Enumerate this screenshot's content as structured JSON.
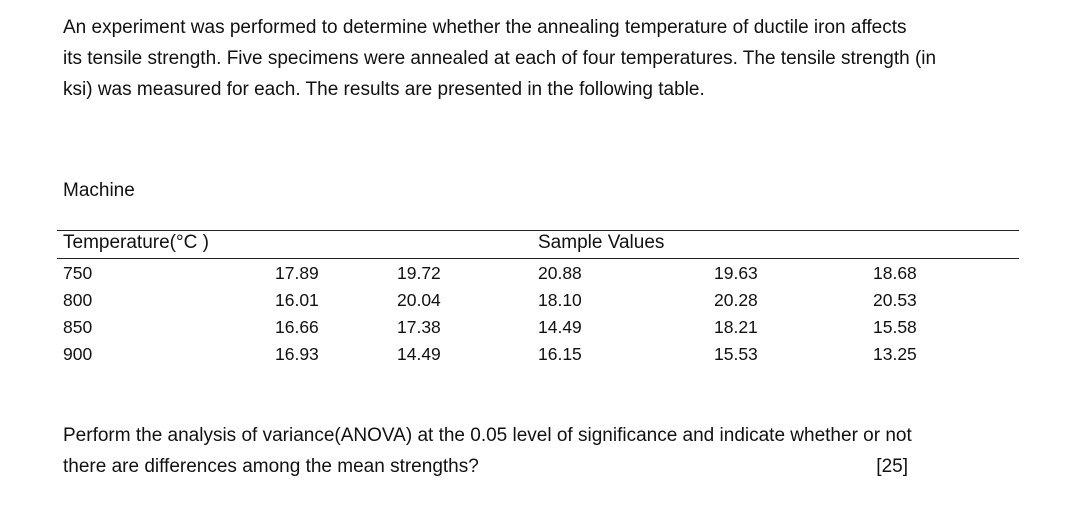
{
  "intro": {
    "line1": "An experiment was performed to determine whether the annealing temperature of ductile iron affects",
    "line2": "its tensile strength. Five specimens were annealed at each of four temperatures. The tensile strength (in",
    "line3": "ksi) was measured for each. The results are presented in the following table."
  },
  "machine_label": "Machine",
  "table": {
    "col_header_temperature": "Temperature(°C )",
    "col_header_samples": "Sample Values",
    "rows": [
      {
        "temp": "750",
        "v1": "17.89",
        "v2": "19.72",
        "v3": "20.88",
        "v4": "19.63",
        "v5": "18.68"
      },
      {
        "temp": "800",
        "v1": "16.01",
        "v2": "20.04",
        "v3": "18.10",
        "v4": "20.28",
        "v5": "20.53"
      },
      {
        "temp": "850",
        "v1": "16.66",
        "v2": "17.38",
        "v3": "14.49",
        "v4": "18.21",
        "v5": "15.58"
      },
      {
        "temp": "900",
        "v1": "16.93",
        "v2": "14.49",
        "v3": "16.15",
        "v4": "15.53",
        "v5": "13.25"
      }
    ]
  },
  "question": {
    "line1": "Perform the analysis of variance(ANOVA) at the 0.05 level of significance and indicate whether or not",
    "line2": "there are differences among the mean strengths?",
    "marks": "[25]"
  }
}
